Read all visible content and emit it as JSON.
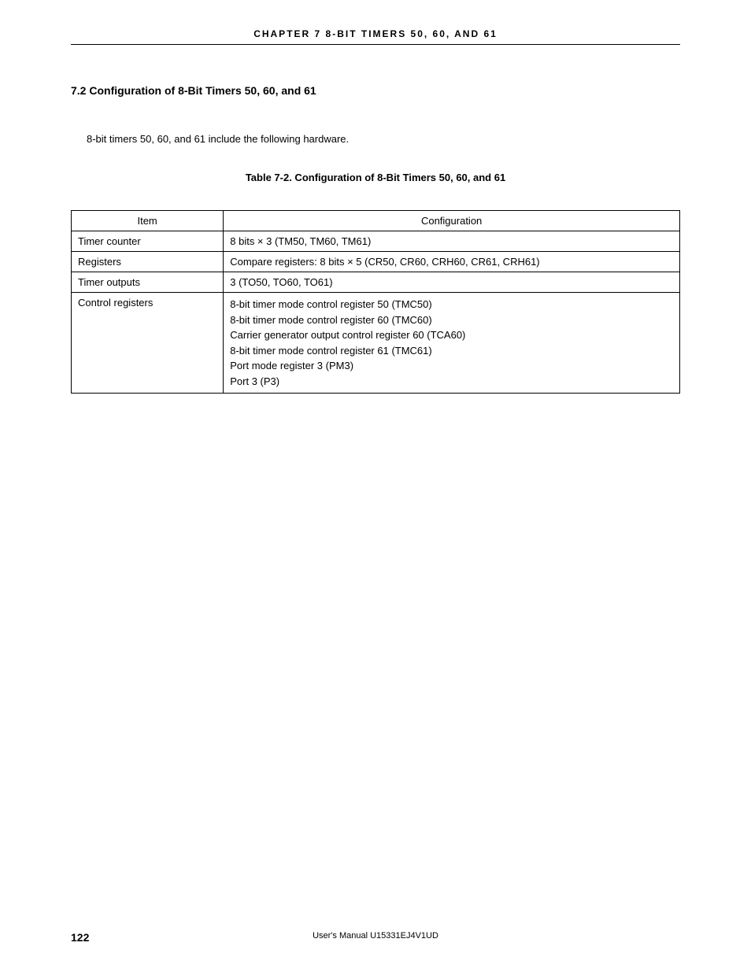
{
  "header": {
    "chapter": "CHAPTER  7   8-BIT  TIMERS  50,  60,  AND  61"
  },
  "section": {
    "number_title": "7.2  Configuration of 8-Bit Timers 50, 60, and 61",
    "intro": "8-bit timers 50, 60, and 61 include the following hardware."
  },
  "table": {
    "caption": "Table 7-2.  Configuration of 8-Bit Timers 50, 60, and 61",
    "headers": {
      "item": "Item",
      "config": "Configuration"
    },
    "rows": {
      "r1": {
        "item": "Timer counter",
        "config": "8 bits × 3 (TM50, TM60, TM61)"
      },
      "r2": {
        "item": "Registers",
        "config": "Compare registers: 8 bits × 5 (CR50, CR60, CRH60, CR61, CRH61)"
      },
      "r3": {
        "item": "Timer outputs",
        "config": "3 (TO50, TO60, TO61)"
      },
      "r4": {
        "item": "Control registers",
        "lines": {
          "l1": "8-bit timer mode control register 50 (TMC50)",
          "l2": "8-bit timer mode control register 60 (TMC60)",
          "l3": "Carrier generator output control register 60 (TCA60)",
          "l4": "8-bit timer mode control register 61 (TMC61)",
          "l5": "Port mode register 3 (PM3)",
          "l6": "Port 3 (P3)"
        }
      }
    }
  },
  "footer": {
    "page": "122",
    "manual": "User's Manual  U15331EJ4V1UD"
  }
}
